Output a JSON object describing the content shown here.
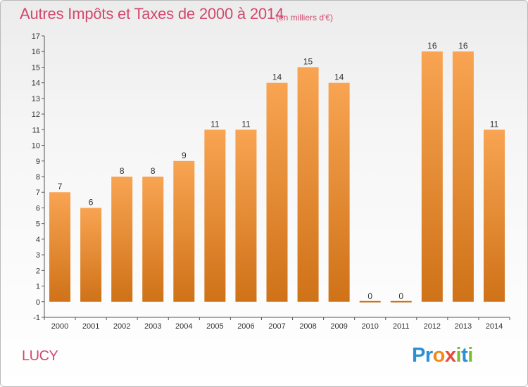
{
  "header": {
    "title": "Autres Impôts et Taxes de 2000 à 2014",
    "subtitle": "(en milliers d'€)"
  },
  "footer": {
    "commune": "LUCY",
    "logo_text": "Proxiti"
  },
  "colors": {
    "title": "#d2486e",
    "bar_top": "#f8a452",
    "bar_bottom": "#cf7218",
    "axis": "#555555",
    "grid": "#cccccc"
  },
  "chart_data": {
    "type": "bar",
    "title": "Autres Impôts et Taxes de 2000 à 2014",
    "subtitle": "(en milliers d'€)",
    "categories": [
      "2000",
      "2001",
      "2002",
      "2003",
      "2004",
      "2005",
      "2006",
      "2007",
      "2008",
      "2009",
      "2010",
      "2011",
      "2012",
      "2013",
      "2014"
    ],
    "values": [
      7,
      6,
      8,
      8,
      9,
      11,
      11,
      14,
      15,
      14,
      0,
      0,
      16,
      16,
      11
    ],
    "data_labels": [
      "7",
      "6",
      "8",
      "8",
      "9",
      "11",
      "11",
      "14",
      "15",
      "14",
      "0",
      "0",
      "16",
      "16",
      "11"
    ],
    "yticks": [
      "-1",
      "0",
      "1",
      "2",
      "3",
      "4",
      "5",
      "6",
      "7",
      "8",
      "9",
      "10",
      "11",
      "12",
      "13",
      "14",
      "15",
      "16",
      "17"
    ],
    "ylim": [
      -1,
      17
    ],
    "xlabel": "",
    "ylabel": "",
    "grid": false,
    "legend": "none"
  }
}
